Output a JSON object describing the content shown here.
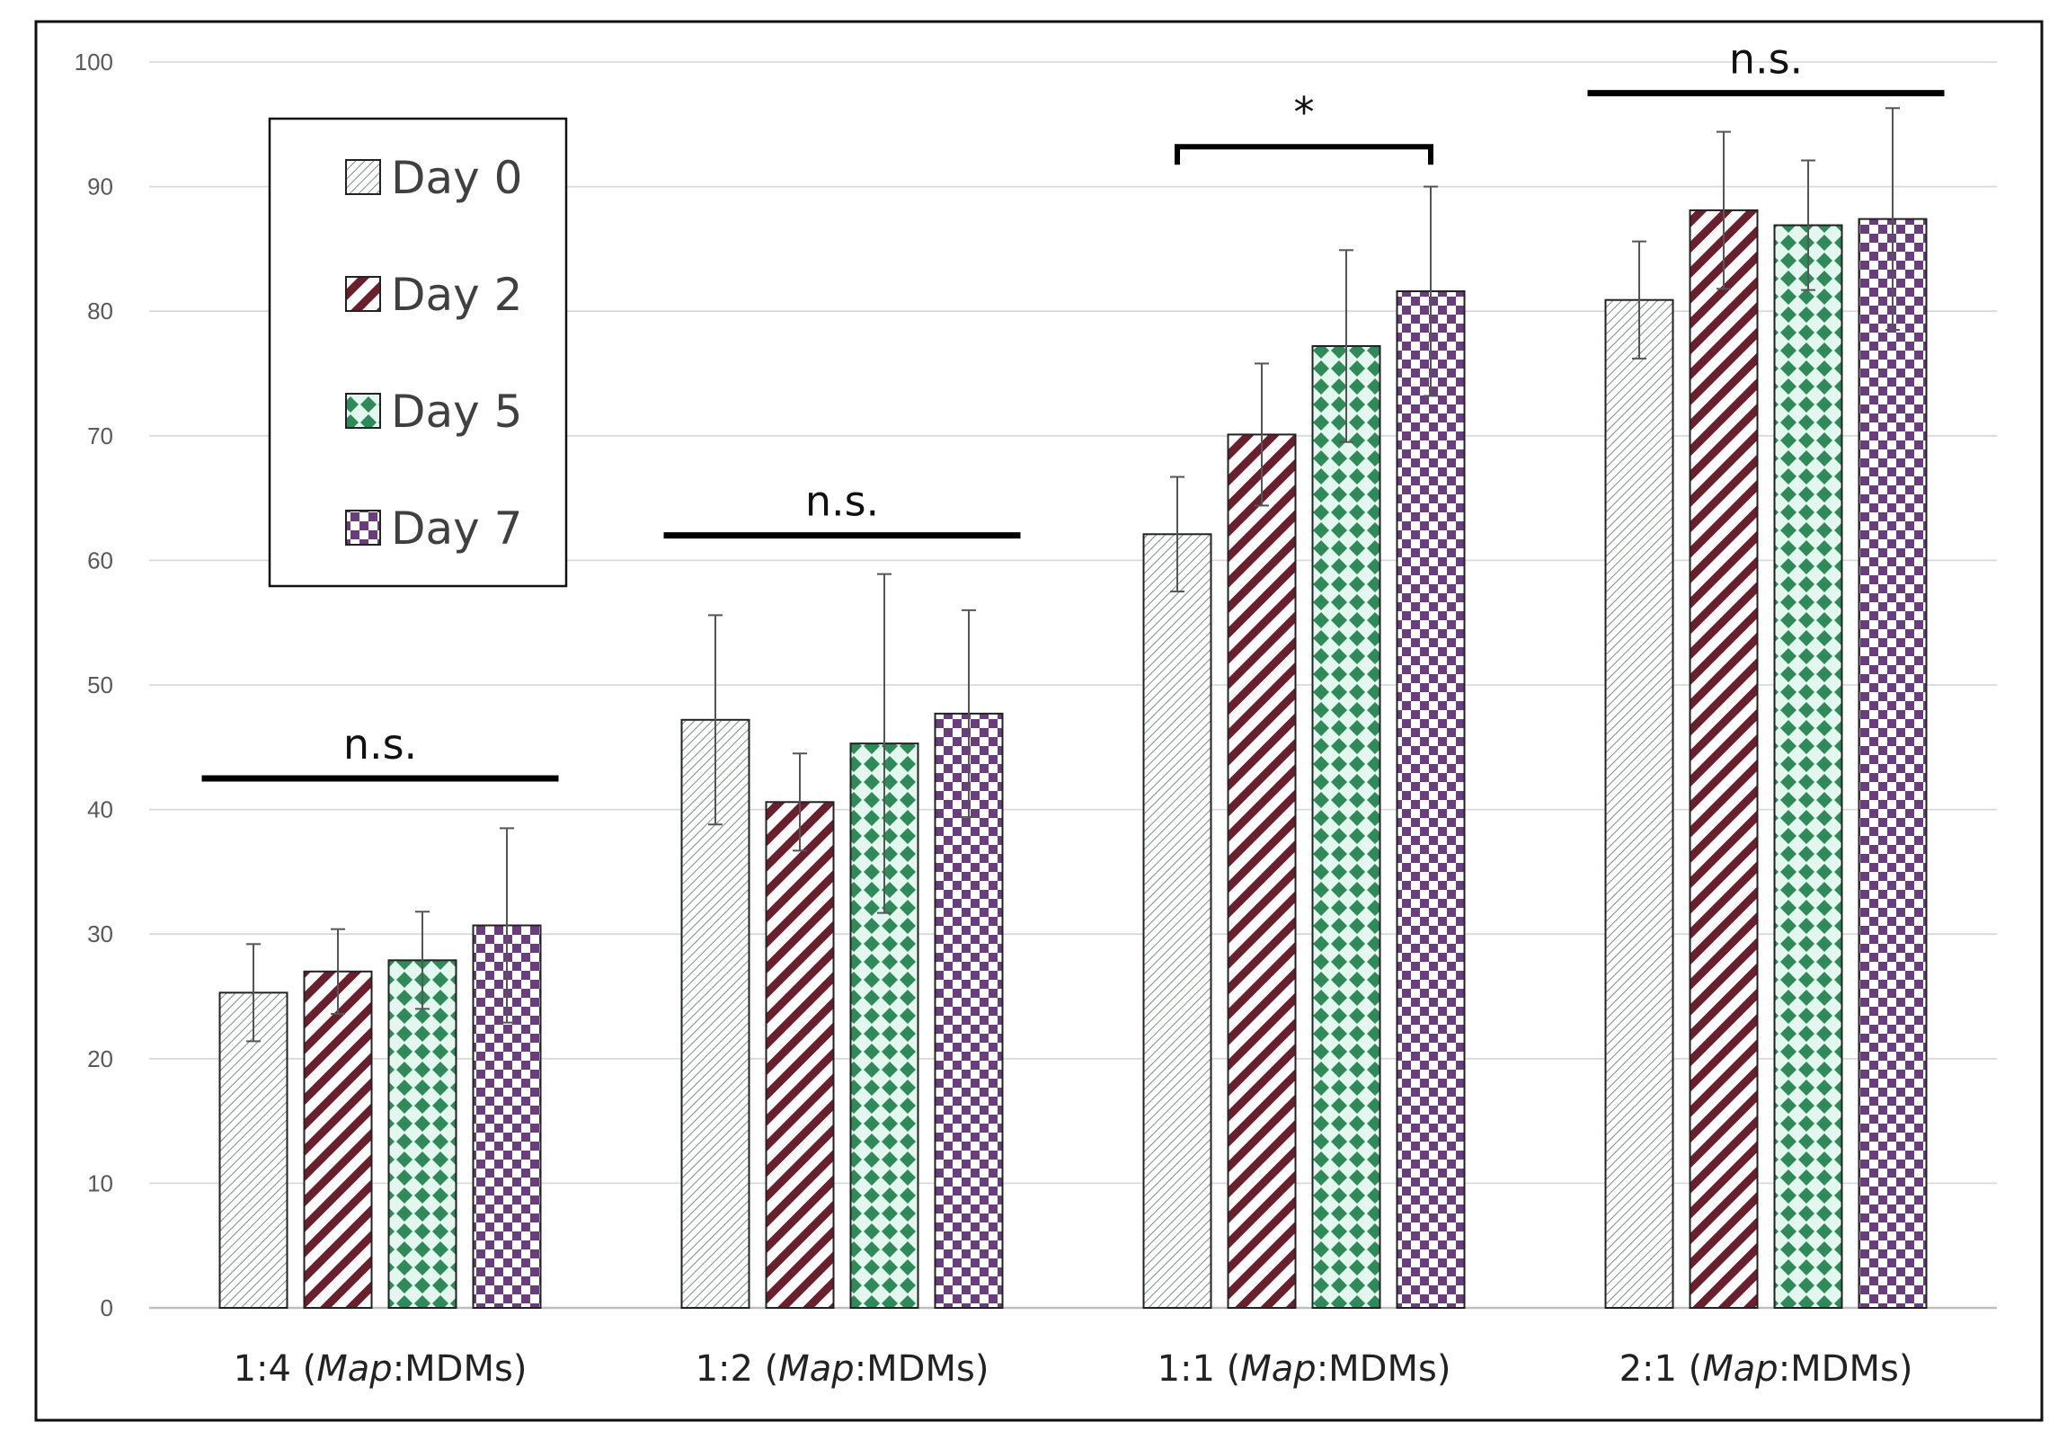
{
  "chart_data": {
    "type": "bar",
    "title": "",
    "xlabel": "",
    "ylabel": "",
    "ylim": [
      0,
      100
    ],
    "yticks": [
      0,
      10,
      20,
      30,
      40,
      50,
      60,
      70,
      80,
      90,
      100
    ],
    "grid": true,
    "legend_position": "top-left",
    "categories": [
      {
        "prefix": "1:4 (",
        "italic": "Map",
        "suffix": ":MDMs)"
      },
      {
        "prefix": "1:2 (",
        "italic": "Map",
        "suffix": ":MDMs)"
      },
      {
        "prefix": "1:1 (",
        "italic": "Map",
        "suffix": ":MDMs)"
      },
      {
        "prefix": "2:1 (",
        "italic": "Map",
        "suffix": ":MDMs)"
      }
    ],
    "series": [
      {
        "name": "Day 0",
        "pattern": "diagonal-light",
        "color": "#7f8c84",
        "values": [
          25.3,
          47.2,
          62.1,
          80.9
        ],
        "errors": [
          3.9,
          8.4,
          4.6,
          4.7
        ]
      },
      {
        "name": "Day 2",
        "pattern": "diagonal-maroon",
        "color": "#6b1e2c",
        "values": [
          27.0,
          40.6,
          70.1,
          88.1
        ],
        "errors": [
          3.4,
          3.9,
          5.7,
          6.3
        ]
      },
      {
        "name": "Day 5",
        "pattern": "diamond-green",
        "color": "#2e8b57",
        "values": [
          27.9,
          45.3,
          77.2,
          86.9
        ],
        "errors": [
          3.9,
          13.6,
          7.7,
          5.2
        ]
      },
      {
        "name": "Day 7",
        "pattern": "checker-purple",
        "color": "#6a3d7f",
        "values": [
          30.7,
          47.7,
          81.6,
          87.4
        ],
        "errors": [
          7.8,
          8.3,
          8.4,
          8.9
        ]
      }
    ],
    "annotations": [
      {
        "text": "n.s.",
        "category_index": 0,
        "bracket": false,
        "y_value": 42.5
      },
      {
        "text": "n.s.",
        "category_index": 1,
        "bracket": false,
        "y_value": 62.0
      },
      {
        "text": "*",
        "category_index": 2,
        "bracket": true,
        "y_value": 93.2
      },
      {
        "text": "n.s.",
        "category_index": 3,
        "bracket": false,
        "y_value": 97.5
      }
    ]
  }
}
